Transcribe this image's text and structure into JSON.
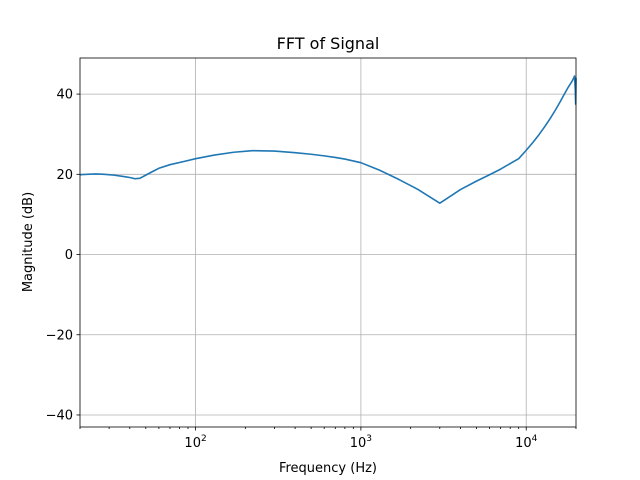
{
  "chart_data": {
    "type": "line",
    "title": "FFT of Signal",
    "xlabel": "Frequency (Hz)",
    "ylabel": "Magnitude (dB)",
    "xscale": "log",
    "xlim": [
      20,
      20000
    ],
    "ylim": [
      -43,
      49
    ],
    "grid": true,
    "x_ticks": [
      {
        "value": 100,
        "base": "10",
        "exp": "2"
      },
      {
        "value": 1000,
        "base": "10",
        "exp": "3"
      },
      {
        "value": 10000,
        "base": "10",
        "exp": "4"
      }
    ],
    "y_ticks": [
      {
        "value": 40,
        "label": "40"
      },
      {
        "value": 20,
        "label": "20"
      },
      {
        "value": 0,
        "label": "0"
      },
      {
        "value": -20,
        "label": "−20"
      },
      {
        "value": -40,
        "label": "−40"
      }
    ],
    "series": [
      {
        "color": "#1f77b4",
        "x": [
          20,
          22,
          25,
          28,
          32,
          36,
          40,
          43,
          46,
          50,
          55,
          60,
          70,
          85,
          100,
          130,
          170,
          220,
          300,
          400,
          500,
          600,
          700,
          800,
          1000,
          1300,
          1700,
          2200,
          3000,
          3500,
          4000,
          5000,
          6000,
          7000,
          9000,
          10000,
          11000,
          12000,
          13000,
          14000,
          15000,
          16000,
          17000,
          18000,
          19000,
          19600,
          19800,
          19900,
          20000
        ],
        "y": [
          19.9,
          20.0,
          20.1,
          20.0,
          19.8,
          19.5,
          19.2,
          18.9,
          19.0,
          19.8,
          20.7,
          21.5,
          22.4,
          23.2,
          23.9,
          24.8,
          25.5,
          25.9,
          25.8,
          25.4,
          25.0,
          24.6,
          24.2,
          23.8,
          22.9,
          21.0,
          18.7,
          16.3,
          12.8,
          14.6,
          16.2,
          18.3,
          19.9,
          21.3,
          23.9,
          26.0,
          28.0,
          30.0,
          32.0,
          34.0,
          36.0,
          38.0,
          40.0,
          41.8,
          43.3,
          44.5,
          41.0,
          37.5,
          44.0
        ]
      }
    ]
  }
}
